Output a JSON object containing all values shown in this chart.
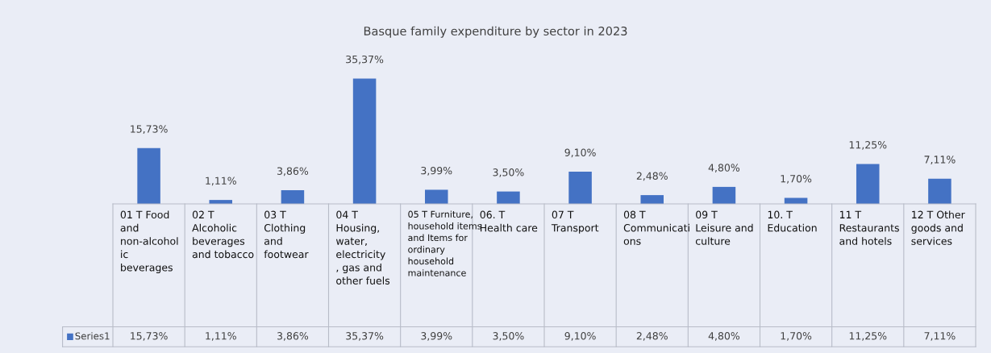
{
  "chart_data": {
    "type": "bar",
    "title": "Basque family expenditure by sector in 2023",
    "categories": [
      "01 T Food and non-alcoholic beverages",
      "02 T Alcoholic beverages and tobacco",
      "03 T Clothing and footwear",
      "04 T Housing, water, electricity, gas and other fuels",
      "05 T Furniture, household items and Items for ordinary household maintenance",
      "06. T Health care",
      "07  T Transport",
      "08 T Communications",
      "09 T Leisure and culture",
      "10. T Education",
      "11  T Restaurants and hotels",
      "12 T Other goods and services"
    ],
    "series": [
      {
        "name": "Series1",
        "color": "#4472c4",
        "values": [
          15.73,
          1.11,
          3.86,
          35.37,
          3.99,
          3.5,
          9.1,
          2.48,
          4.8,
          1.7,
          11.25,
          7.11
        ],
        "value_labels": [
          "15,73%",
          "1,11%",
          "3,86%",
          "35,37%",
          "3,99%",
          "3,50%",
          "9,10%",
          "2,48%",
          "4,80%",
          "1,70%",
          "11,25%",
          "7,11%"
        ]
      }
    ],
    "legend": "bottom"
  }
}
